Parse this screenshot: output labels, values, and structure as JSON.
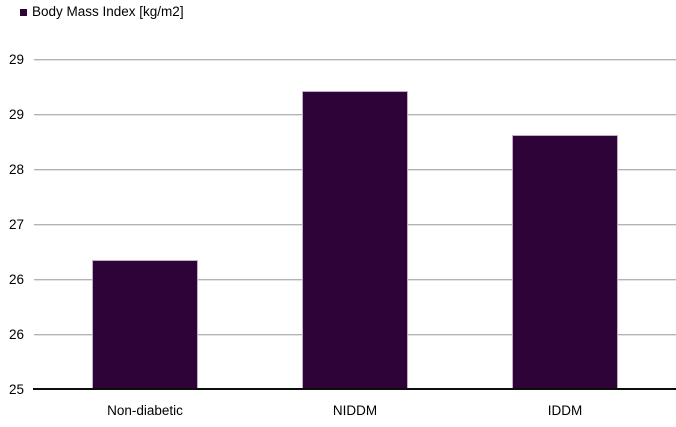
{
  "chart_data": {
    "type": "bar",
    "title": "",
    "legend_label": "Body Mass Index [kg/m2]",
    "legend_position": "top-left",
    "categories": [
      "Non-diabetic",
      "NIDDM",
      "IDDM"
    ],
    "values": [
      26.65,
      28.8,
      28.25
    ],
    "series": [
      {
        "name": "Body Mass Index [kg/m2]",
        "values": [
          26.65,
          28.8,
          28.25
        ]
      }
    ],
    "xlabel": "",
    "ylabel": "",
    "ylim": [
      25,
      29.2
    ],
    "ytick_interval": 0.7,
    "yticks": [
      {
        "value": 29.2,
        "label": "29"
      },
      {
        "value": 28.5,
        "label": "29"
      },
      {
        "value": 27.8,
        "label": "28"
      },
      {
        "value": 27.1,
        "label": "27"
      },
      {
        "value": 26.4,
        "label": "26"
      },
      {
        "value": 25.7,
        "label": "26"
      },
      {
        "value": 25.0,
        "label": "25"
      }
    ],
    "grid": true,
    "bar_color": "#2E0337",
    "bar_border_color": "#C4AEC6",
    "gridline_color": "#B3B3B3",
    "gridline_shadow_color": "#E3E3E3",
    "axis_line_color": "#0D0D0D",
    "text_color": "#000000",
    "background_color": "#FFFFFF"
  }
}
